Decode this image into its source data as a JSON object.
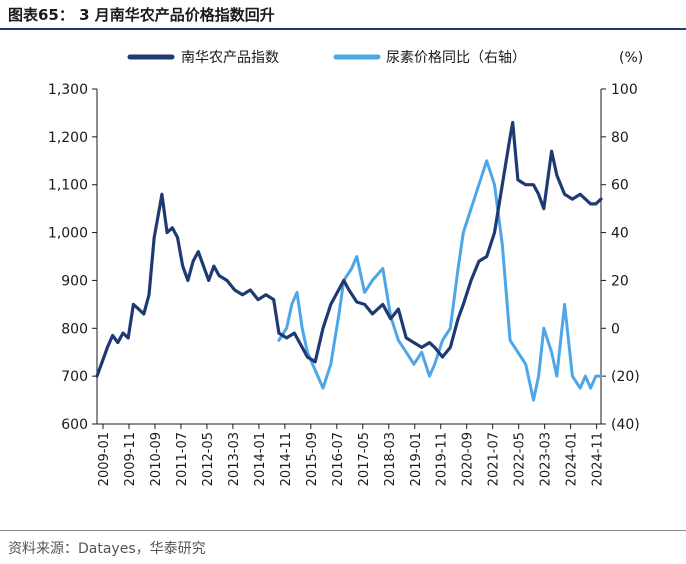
{
  "figure": {
    "title": "图表65： 3 月南华农产品价格指数回升",
    "source": "资料来源：Datayes，华泰研究"
  },
  "chart_data": {
    "type": "line",
    "title": "",
    "colors": {
      "primary": "#1f3a73",
      "secondary": "#4da6e8"
    },
    "legend_placement": "top-center",
    "grid": false,
    "left_axis": {
      "ylim": [
        600,
        1300
      ],
      "ticks": [
        "600",
        "700",
        "800",
        "900",
        "1,000",
        "1,100",
        "1,200",
        "1,300"
      ],
      "tick_values": [
        600,
        700,
        800,
        900,
        1000,
        1100,
        1200,
        1300
      ]
    },
    "right_axis": {
      "unit_label": "(%)",
      "ylim": [
        -40,
        100
      ],
      "ticks": [
        "(40)",
        "(20)",
        "0",
        "20",
        "40",
        "60",
        "80",
        "100"
      ],
      "tick_values": [
        -40,
        -20,
        0,
        20,
        40,
        60,
        80,
        100
      ]
    },
    "x_ticks": [
      "2009-01",
      "2009-11",
      "2010-09",
      "2011-07",
      "2012-05",
      "2013-03",
      "2014-01",
      "2014-11",
      "2015-09",
      "2016-07",
      "2017-05",
      "2018-03",
      "2019-01",
      "2019-11",
      "2020-09",
      "2021-07",
      "2022-05",
      "2023-03",
      "2024-01",
      "2024-11"
    ],
    "x_range": [
      "2009-01",
      "2025-03"
    ],
    "series": [
      {
        "name": "南华农产品指数",
        "axis": "left",
        "color": "#1f3a73",
        "points": [
          [
            "2009-01",
            700
          ],
          [
            "2009-03",
            730
          ],
          [
            "2009-05",
            760
          ],
          [
            "2009-07",
            785
          ],
          [
            "2009-09",
            770
          ],
          [
            "2009-11",
            790
          ],
          [
            "2010-01",
            780
          ],
          [
            "2010-03",
            850
          ],
          [
            "2010-05",
            840
          ],
          [
            "2010-07",
            830
          ],
          [
            "2010-09",
            870
          ],
          [
            "2010-11",
            990
          ],
          [
            "2011-01",
            1050
          ],
          [
            "2011-02",
            1080
          ],
          [
            "2011-04",
            1000
          ],
          [
            "2011-06",
            1010
          ],
          [
            "2011-08",
            990
          ],
          [
            "2011-10",
            930
          ],
          [
            "2011-12",
            900
          ],
          [
            "2012-02",
            940
          ],
          [
            "2012-04",
            960
          ],
          [
            "2012-06",
            930
          ],
          [
            "2012-08",
            900
          ],
          [
            "2012-10",
            930
          ],
          [
            "2012-12",
            910
          ],
          [
            "2013-03",
            900
          ],
          [
            "2013-06",
            880
          ],
          [
            "2013-09",
            870
          ],
          [
            "2013-12",
            880
          ],
          [
            "2014-03",
            860
          ],
          [
            "2014-06",
            870
          ],
          [
            "2014-09",
            860
          ],
          [
            "2014-11",
            790
          ],
          [
            "2015-02",
            780
          ],
          [
            "2015-05",
            790
          ],
          [
            "2015-08",
            760
          ],
          [
            "2015-10",
            740
          ],
          [
            "2016-01",
            730
          ],
          [
            "2016-04",
            800
          ],
          [
            "2016-07",
            850
          ],
          [
            "2016-10",
            880
          ],
          [
            "2016-12",
            900
          ],
          [
            "2017-02",
            880
          ],
          [
            "2017-05",
            855
          ],
          [
            "2017-08",
            850
          ],
          [
            "2017-11",
            830
          ],
          [
            "2018-03",
            850
          ],
          [
            "2018-06",
            820
          ],
          [
            "2018-09",
            840
          ],
          [
            "2018-12",
            780
          ],
          [
            "2019-03",
            770
          ],
          [
            "2019-06",
            760
          ],
          [
            "2019-09",
            770
          ],
          [
            "2019-11",
            760
          ],
          [
            "2020-02",
            740
          ],
          [
            "2020-05",
            760
          ],
          [
            "2020-08",
            820
          ],
          [
            "2020-10",
            850
          ],
          [
            "2021-01",
            900
          ],
          [
            "2021-04",
            940
          ],
          [
            "2021-07",
            950
          ],
          [
            "2021-10",
            1000
          ],
          [
            "2022-01",
            1100
          ],
          [
            "2022-04",
            1200
          ],
          [
            "2022-05",
            1230
          ],
          [
            "2022-07",
            1110
          ],
          [
            "2022-10",
            1100
          ],
          [
            "2023-01",
            1100
          ],
          [
            "2023-03",
            1080
          ],
          [
            "2023-05",
            1050
          ],
          [
            "2023-08",
            1170
          ],
          [
            "2023-10",
            1120
          ],
          [
            "2024-01",
            1080
          ],
          [
            "2024-04",
            1070
          ],
          [
            "2024-07",
            1080
          ],
          [
            "2024-09",
            1070
          ],
          [
            "2024-11",
            1060
          ],
          [
            "2025-01",
            1060
          ],
          [
            "2025-03",
            1070
          ]
        ]
      },
      {
        "name": "尿素价格同比（右轴）",
        "axis": "right",
        "color": "#4da6e8",
        "points": [
          [
            "2014-11",
            -5
          ],
          [
            "2015-02",
            0
          ],
          [
            "2015-04",
            10
          ],
          [
            "2015-06",
            15
          ],
          [
            "2015-08",
            0
          ],
          [
            "2015-10",
            -10
          ],
          [
            "2015-12",
            -15
          ],
          [
            "2016-02",
            -20
          ],
          [
            "2016-04",
            -25
          ],
          [
            "2016-07",
            -15
          ],
          [
            "2016-10",
            5
          ],
          [
            "2016-12",
            20
          ],
          [
            "2017-03",
            25
          ],
          [
            "2017-05",
            30
          ],
          [
            "2017-08",
            15
          ],
          [
            "2017-11",
            20
          ],
          [
            "2018-03",
            25
          ],
          [
            "2018-06",
            5
          ],
          [
            "2018-09",
            -5
          ],
          [
            "2018-12",
            -10
          ],
          [
            "2019-03",
            -15
          ],
          [
            "2019-06",
            -10
          ],
          [
            "2019-09",
            -20
          ],
          [
            "2019-11",
            -15
          ],
          [
            "2020-02",
            -5
          ],
          [
            "2020-05",
            0
          ],
          [
            "2020-08",
            25
          ],
          [
            "2020-10",
            40
          ],
          [
            "2021-01",
            50
          ],
          [
            "2021-04",
            60
          ],
          [
            "2021-07",
            70
          ],
          [
            "2021-10",
            60
          ],
          [
            "2022-01",
            35
          ],
          [
            "2022-04",
            -5
          ],
          [
            "2022-07",
            -10
          ],
          [
            "2022-10",
            -15
          ],
          [
            "2023-01",
            -30
          ],
          [
            "2023-03",
            -20
          ],
          [
            "2023-05",
            0
          ],
          [
            "2023-08",
            -10
          ],
          [
            "2023-10",
            -20
          ],
          [
            "2024-01",
            10
          ],
          [
            "2024-04",
            -20
          ],
          [
            "2024-07",
            -25
          ],
          [
            "2024-09",
            -20
          ],
          [
            "2024-11",
            -25
          ],
          [
            "2025-01",
            -20
          ],
          [
            "2025-03",
            -20
          ]
        ]
      }
    ]
  }
}
